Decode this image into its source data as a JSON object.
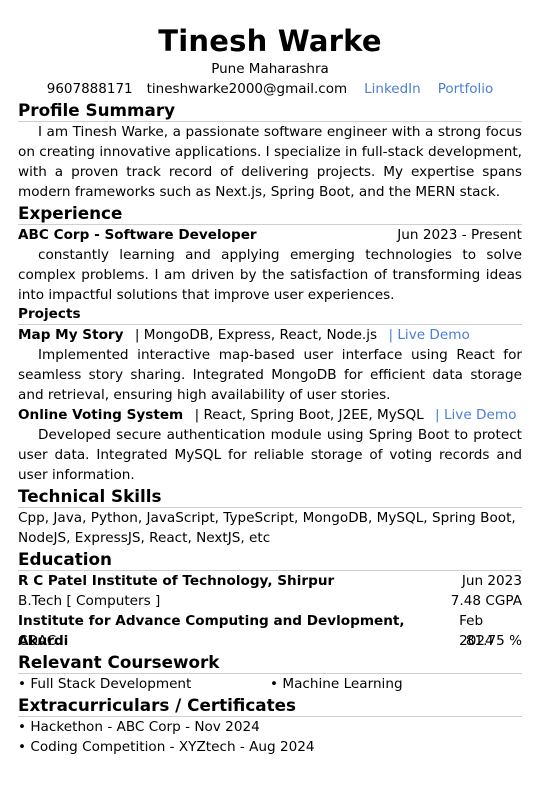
{
  "header": {
    "name": "Tinesh Warke",
    "location": "Pune Maharashra",
    "phone": "9607888171",
    "email": "tineshwarke2000@gmail.com",
    "linkedin": "LinkedIn",
    "portfolio": "Portfolio"
  },
  "profile": {
    "title": "Profile Summary",
    "text": "I am Tinesh Warke, a passionate software engineer with a strong focus on creating innovative applications. I specialize in full-stack development, with a proven track record of delivering projects. My expertise spans modern frameworks such as Next.js, Spring Boot, and the MERN stack."
  },
  "experience": {
    "title": "Experience",
    "role": "ABC Corp - Software Developer",
    "date": "Jun 2023 - Present",
    "text": "constantly learning and applying emerging technologies to solve complex problems. I am driven by the satisfaction of transforming ideas into impactful solutions that improve user experiences."
  },
  "projects": {
    "title": "Projects",
    "items": [
      {
        "name": "Map My Story",
        "stack": "| MongoDB, Express, React, Node.js",
        "link": "| Live Demo",
        "text": "Implemented interactive map-based user interface using React for seamless story sharing. Integrated MongoDB for efficient data storage and retrieval, ensuring high availability of user stories."
      },
      {
        "name": "Online Voting System",
        "stack": "| React, Spring Boot, J2EE, MySQL",
        "link": "| Live Demo",
        "text": "Developed secure authentication module using Spring Boot to protect user data. Integrated MySQL for reliable storage of voting records and user information."
      }
    ]
  },
  "skills": {
    "title": "Technical Skills",
    "text": "Cpp, Java, Python, JavaScript, TypeScript, MongoDB, MySQL, Spring Boot, NodeJS, ExpressJS, React, NextJS, etc"
  },
  "education": {
    "title": "Education",
    "items": [
      {
        "school": "R C Patel Institute of Technology, Shirpur",
        "date": "Jun 2023",
        "degree": "B.Tech [ Computers ]",
        "score": "7.48 CGPA"
      },
      {
        "school": "Institute for Advance Computing and Devlopment, Akurdi",
        "date": "Feb 2024",
        "degree": "CDAC",
        "score": "81.75 %"
      }
    ]
  },
  "coursework": {
    "title": "Relevant Coursework",
    "items": [
      "• Full Stack Development",
      "• Machine Learning"
    ]
  },
  "extras": {
    "title": "Extracurriculars / Certificates",
    "items": [
      "• Hackethon - ABC Corp - Nov 2024",
      "• Coding Competition - XYZtech - Aug 2024"
    ]
  }
}
